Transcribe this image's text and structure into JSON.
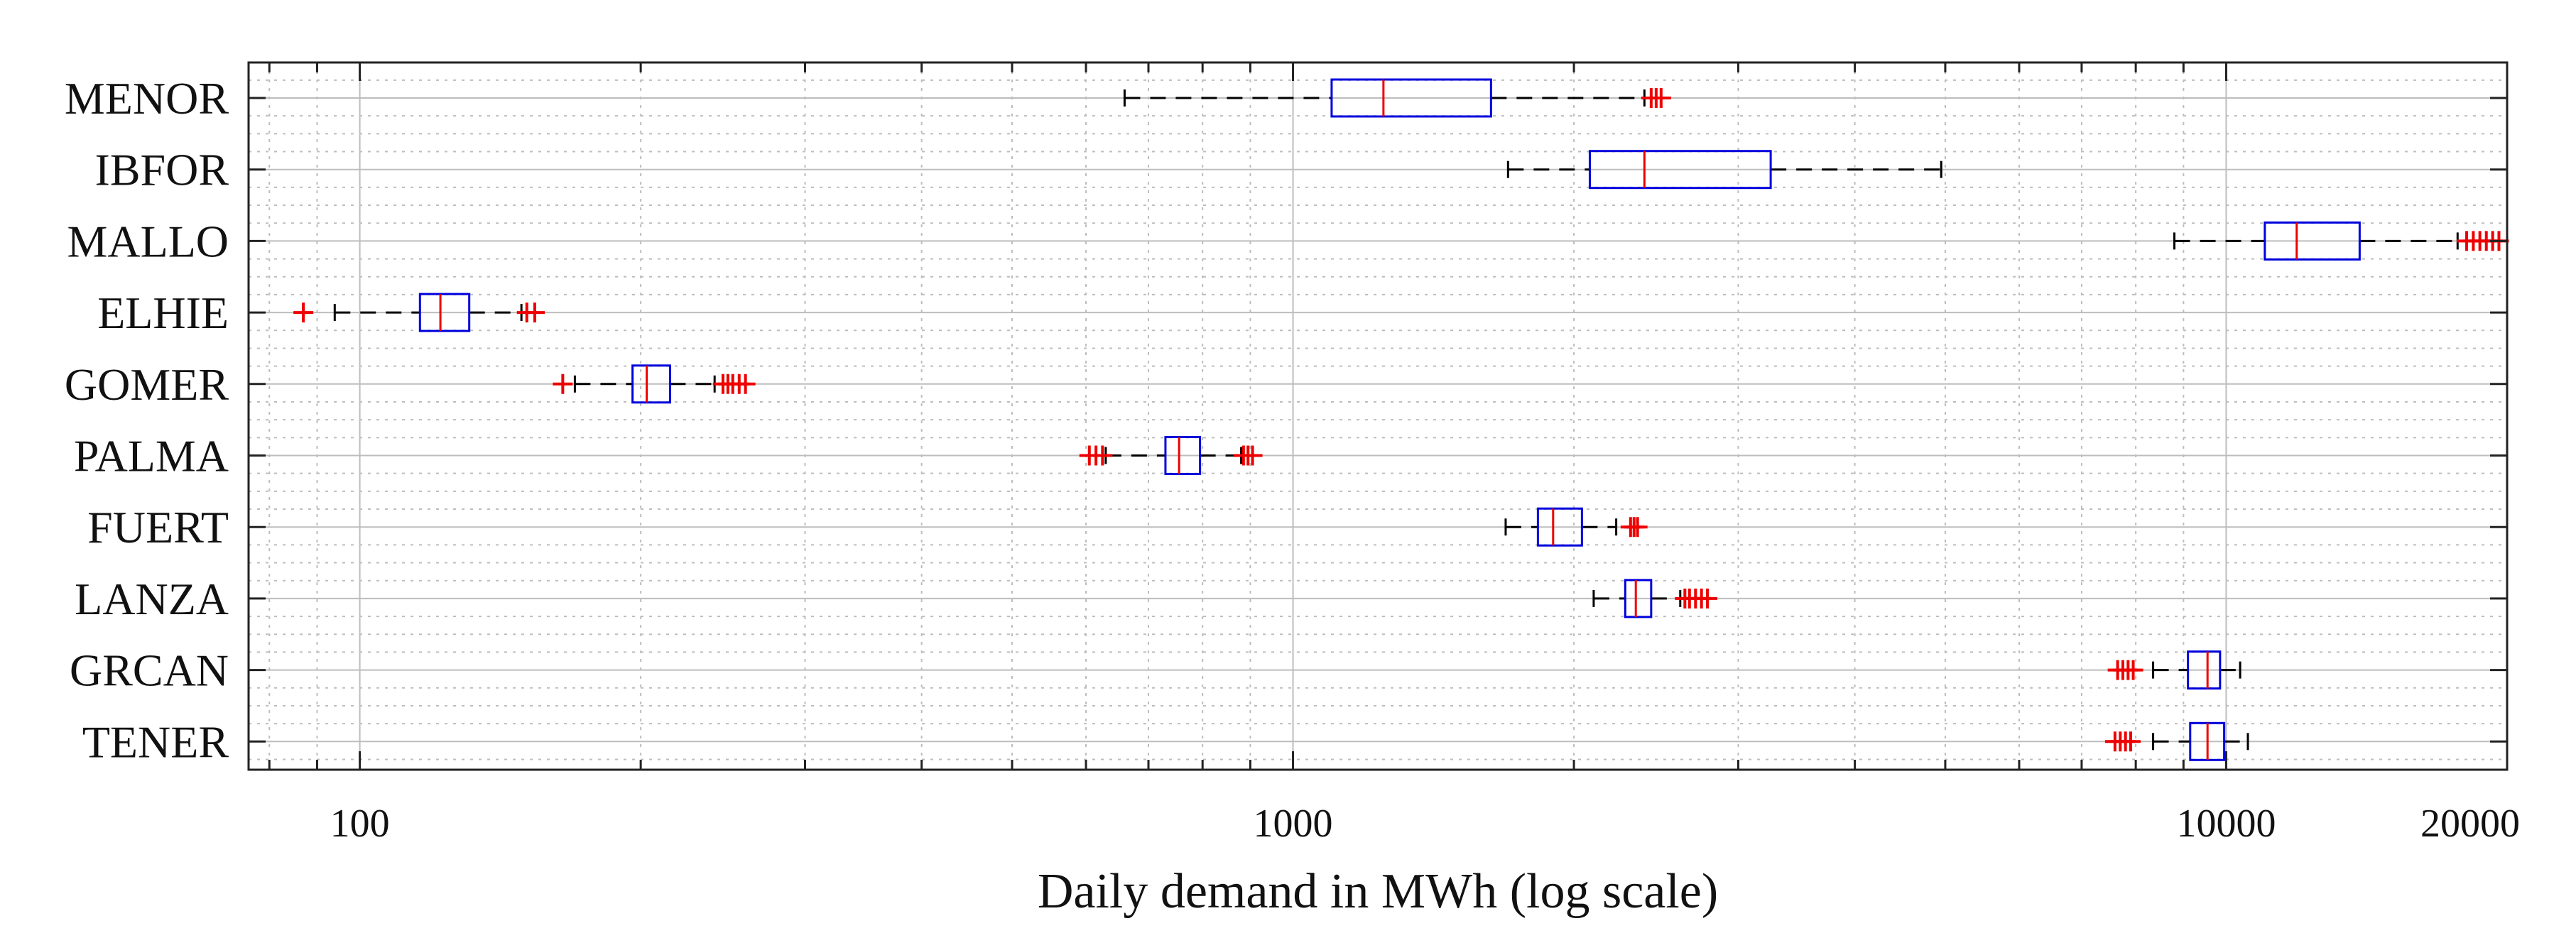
{
  "chart_data": {
    "type": "boxplot",
    "orientation": "horizontal",
    "x_scale": "log",
    "xlabel": "Daily demand in MWh (log scale)",
    "xlim": [
      76,
      20000
    ],
    "x_ticks": [
      100,
      1000,
      10000,
      20000
    ],
    "x_tick_labels": [
      "100",
      "1000",
      "10000",
      "20000"
    ],
    "grid": true,
    "colors": {
      "box": "#0000dd",
      "median": "#ee0000",
      "whisker": "#000000",
      "outlier": "#ee0000",
      "grid": "#bdbdbd"
    },
    "categories": [
      "MENOR",
      "IBFOR",
      "MALLO",
      "ELHIE",
      "GOMER",
      "PALMA",
      "FUERT",
      "LANZA",
      "GRCAN",
      "TENER"
    ],
    "boxes": [
      {
        "label": "MENOR",
        "whisker_low": 660,
        "q1": 1100,
        "median": 1250,
        "q3": 1630,
        "whisker_high": 2380,
        "outliers": [
          2420,
          2450,
          2480
        ]
      },
      {
        "label": "IBFOR",
        "whisker_low": 1700,
        "q1": 2080,
        "median": 2380,
        "q3": 3250,
        "whisker_high": 4950,
        "outliers": []
      },
      {
        "label": "MALLO",
        "whisker_low": 8800,
        "q1": 11000,
        "median": 11900,
        "q3": 13900,
        "whisker_high": 17700,
        "outliers": [
          18100,
          18400,
          18700,
          19000,
          19300,
          19600
        ]
      },
      {
        "label": "ELHIE",
        "whisker_low": 94,
        "q1": 116,
        "median": 122,
        "q3": 131,
        "whisker_high": 149,
        "outliers": [
          87,
          151,
          154
        ]
      },
      {
        "label": "GOMER",
        "whisker_low": 170,
        "q1": 196,
        "median": 203,
        "q3": 215,
        "whisker_high": 240,
        "outliers": [
          165,
          245,
          248,
          251,
          255,
          259
        ]
      },
      {
        "label": "PALMA",
        "whisker_low": 630,
        "q1": 730,
        "median": 755,
        "q3": 795,
        "whisker_high": 880,
        "outliers": [
          605,
          615,
          625,
          885,
          895,
          905
        ]
      },
      {
        "label": "FUERT",
        "whisker_low": 1690,
        "q1": 1830,
        "median": 1900,
        "q3": 2040,
        "whisker_high": 2220,
        "outliers": [
          2300,
          2320,
          2340
        ]
      },
      {
        "label": "LANZA",
        "whisker_low": 2100,
        "q1": 2270,
        "median": 2330,
        "q3": 2420,
        "whisker_high": 2600,
        "outliers": [
          2630,
          2660,
          2700,
          2740,
          2780
        ]
      },
      {
        "label": "GRCAN",
        "whisker_low": 8350,
        "q1": 9100,
        "median": 9550,
        "q3": 9850,
        "whisker_high": 10350,
        "outliers": [
          7650,
          7750,
          7850,
          7950
        ]
      },
      {
        "label": "TENER",
        "whisker_low": 8350,
        "q1": 9150,
        "median": 9550,
        "q3": 9950,
        "whisker_high": 10550,
        "outliers": [
          7600,
          7700,
          7800,
          7900
        ]
      }
    ]
  }
}
